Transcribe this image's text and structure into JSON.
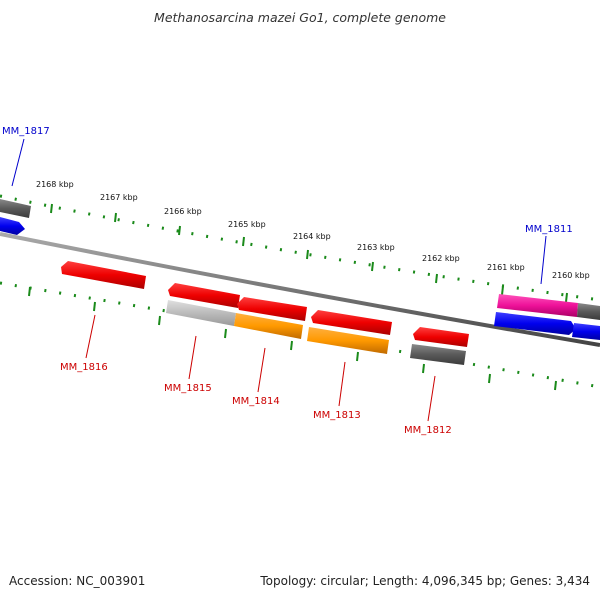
{
  "title": "Methanosarcina mazei Go1, complete genome",
  "footer": {
    "accession": "Accession: NC_003901",
    "summary": "Topology: circular; Length: 4,096,345 bp; Genes: 3,434"
  },
  "ticks": [
    "2168 kbp",
    "2167 kbp",
    "2166 kbp",
    "2165 kbp",
    "2164 kbp",
    "2163 kbp",
    "2162 kbp",
    "2161 kbp",
    "2160 kbp"
  ],
  "genes": {
    "forward": [
      "MM_1817",
      "MM_1811"
    ],
    "reverse": [
      "MM_1816",
      "MM_1815",
      "MM_1814",
      "MM_1813",
      "MM_1812"
    ]
  },
  "colors": {
    "forward_label": "#0000cc",
    "reverse_label": "#cc0000",
    "tick": "#1a8a1a",
    "backbone": "#777777",
    "red_gene": "#ee0000",
    "orange_gene": "#ff9900",
    "gray_gene": "#5a5a5a",
    "lightgray_gene": "#bbbbbb",
    "blue_gene": "#0000ee",
    "pink_gene": "#ee1199"
  }
}
